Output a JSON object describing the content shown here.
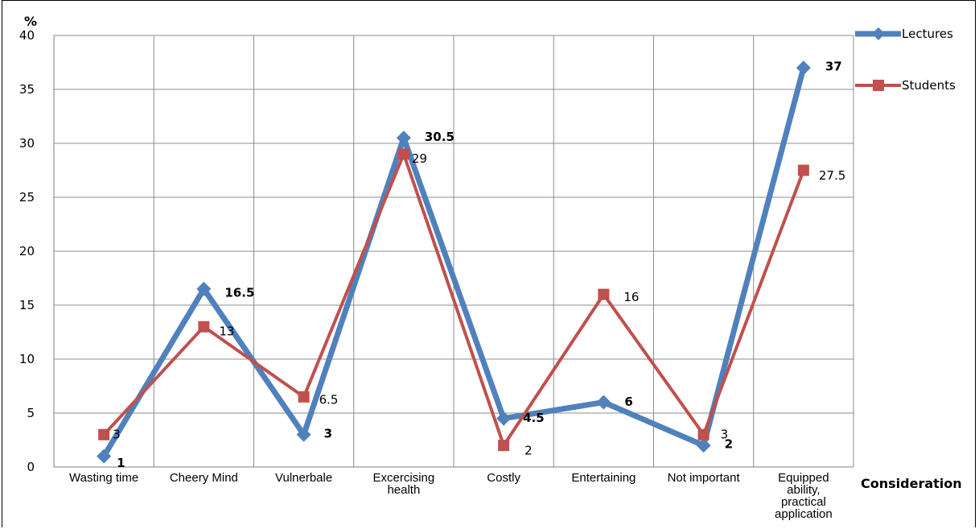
{
  "chart_data": {
    "type": "line",
    "ylabel": "%",
    "xlabel": "Consideration",
    "ylim": [
      0,
      40
    ],
    "yticks": [
      0,
      5,
      10,
      15,
      20,
      25,
      30,
      35,
      40
    ],
    "categories": [
      [
        "Wasting time"
      ],
      [
        "Cheery Mind"
      ],
      [
        "Vulnerbale"
      ],
      [
        "Excercising",
        "health"
      ],
      [
        "Costly"
      ],
      [
        "Entertaining"
      ],
      [
        "Not important"
      ],
      [
        "Equipped",
        "ability,",
        "practical",
        "application"
      ]
    ],
    "series": [
      {
        "name": "Lectures",
        "color": "#4F81BD",
        "marker": "diamond",
        "values": [
          1,
          16.5,
          3,
          30.5,
          4.5,
          6,
          2,
          37
        ],
        "labels": [
          "1",
          "16.5",
          "3",
          "30.5",
          "4.5",
          "6",
          "2",
          "37"
        ]
      },
      {
        "name": "Students",
        "color": "#C0504D",
        "marker": "square",
        "values": [
          3,
          13,
          6.5,
          29,
          2,
          16,
          3,
          27.5
        ],
        "labels": [
          "3",
          "13",
          "6.5",
          "29",
          "2",
          "16",
          "3",
          "27.5"
        ]
      }
    ],
    "grid": true,
    "legend_position": "right"
  }
}
